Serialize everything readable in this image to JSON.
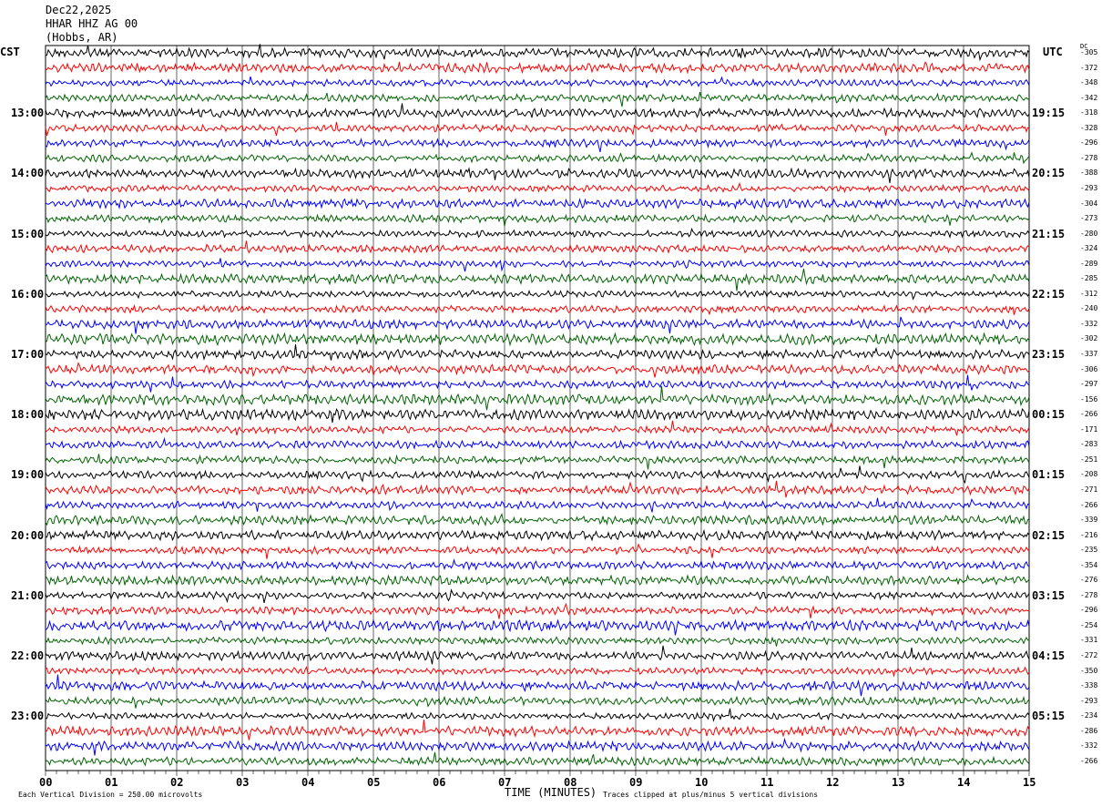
{
  "header": {
    "date": "Dec22,2025",
    "station": "HHAR HHZ AG 00",
    "location": "(Hobbs, AR)"
  },
  "chart_data": {
    "type": "line",
    "subtype": "helicorder",
    "left_timezone": "CST",
    "right_timezone": "UTC",
    "dc_label": "DC",
    "rows_per_hour": 4,
    "minutes_per_row": 15,
    "trace_colors": [
      "#000000",
      "#ff0000",
      "#0000ff",
      "#006400"
    ],
    "left_hour_labels": [
      "13:00",
      "14:00",
      "15:00",
      "16:00",
      "17:00",
      "18:00",
      "19:00",
      "20:00",
      "21:00",
      "22:00",
      "23:00"
    ],
    "right_hour_labels": [
      "19:15",
      "20:15",
      "21:15",
      "22:15",
      "23:15",
      "00:15",
      "01:15",
      "02:15",
      "03:15",
      "04:15",
      "05:15"
    ],
    "dc_offsets": [
      "-305",
      "-372",
      "-348",
      "-342",
      "-318",
      "-328",
      "-296",
      "-278",
      "-388",
      "-293",
      "-304",
      "-273",
      "-280",
      "-324",
      "-289",
      "-285",
      "-312",
      "-240",
      "-332",
      "-302",
      "-337",
      "-306",
      "-297",
      "-156",
      "-266",
      "-171",
      "-283",
      "-251",
      "-208",
      "-271",
      "-266",
      "-339",
      "-216",
      "-235",
      "-354",
      "-276",
      "-278",
      "-296",
      "-254",
      "-331",
      "-272",
      "-350",
      "-338",
      "-293",
      "-234",
      "-286",
      "-332",
      "-266"
    ],
    "x_ticks": [
      "00",
      "01",
      "02",
      "03",
      "04",
      "05",
      "06",
      "07",
      "08",
      "09",
      "10",
      "11",
      "12",
      "13",
      "14",
      "15"
    ],
    "xlabel": "TIME (MINUTES)",
    "xlim": [
      0,
      15
    ],
    "grid": true
  },
  "footer": {
    "scale": "Each Vertical Division =  250.00 microvolts",
    "clip": "Traces clipped at plus/minus 5 vertical divisions"
  }
}
